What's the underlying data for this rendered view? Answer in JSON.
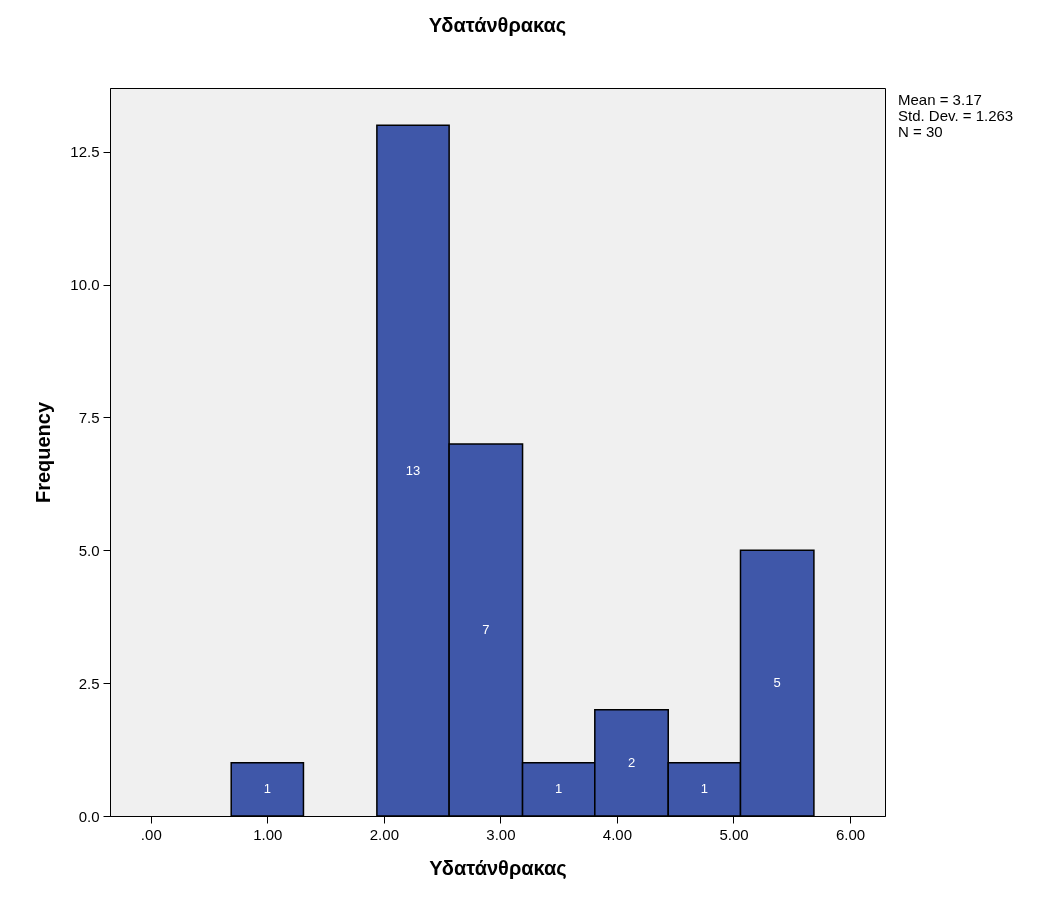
{
  "chart_data": {
    "type": "histogram",
    "title": "Υδατάνθρακας",
    "xlabel": "Υδατάνθρακας",
    "ylabel": "Frequency",
    "bins": [
      0.69,
      1.31,
      1.94,
      2.56,
      3.19,
      3.81,
      4.44,
      5.06,
      5.69
    ],
    "values": [
      1,
      0,
      13,
      7,
      1,
      2,
      1,
      5
    ],
    "value_labels": [
      "1",
      null,
      "13",
      "7",
      "1",
      "2",
      "1",
      "5"
    ],
    "color": "#3f57a9",
    "xlim": [
      -0.35,
      6.3
    ],
    "ylim": [
      0,
      13.7
    ],
    "xticks": [
      {
        "value": 0,
        "label": ".00"
      },
      {
        "value": 1,
        "label": "1.00"
      },
      {
        "value": 2,
        "label": "2.00"
      },
      {
        "value": 3,
        "label": "3.00"
      },
      {
        "value": 4,
        "label": "4.00"
      },
      {
        "value": 5,
        "label": "5.00"
      },
      {
        "value": 6,
        "label": "6.00"
      }
    ],
    "yticks": [
      {
        "value": 0,
        "label": "0.0"
      },
      {
        "value": 2.5,
        "label": "2.5"
      },
      {
        "value": 5,
        "label": "5.0"
      },
      {
        "value": 7.5,
        "label": "7.5"
      },
      {
        "value": 10,
        "label": "10.0"
      },
      {
        "value": 12.5,
        "label": "12.5"
      }
    ],
    "grid": false,
    "annotations": [
      "Mean = 3.17",
      "Std. Dev. = 1.263",
      "N = 30"
    ]
  }
}
